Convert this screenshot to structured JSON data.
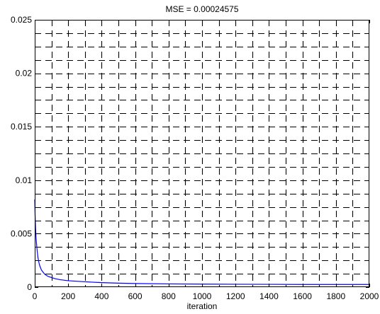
{
  "chart_data": {
    "type": "line",
    "title": "MSE =  0.00024575",
    "xlabel": "iteration",
    "ylabel": "",
    "xlim": [
      0,
      2000
    ],
    "ylim": [
      0,
      0.025
    ],
    "grid": true,
    "x_ticks": [
      0,
      200,
      400,
      600,
      800,
      1000,
      1200,
      1400,
      1600,
      1800,
      2000
    ],
    "x_tick_labels": [
      "0",
      "200",
      "400",
      "600",
      "800",
      "1000",
      "1200",
      "1400",
      "1600",
      "1800",
      "2000"
    ],
    "y_ticks": [
      0,
      0.005,
      0.01,
      0.015,
      0.02,
      0.025
    ],
    "y_tick_labels": [
      "0",
      "0.005",
      "0.01",
      "0.015",
      "0.02",
      "0.025"
    ],
    "series": [
      {
        "color": "#0000ff",
        "x": [
          0,
          2,
          5,
          8,
          12,
          16,
          20,
          25,
          30,
          35,
          40,
          50,
          60,
          70,
          80,
          100,
          120,
          150,
          200,
          250,
          300,
          400,
          500,
          600,
          800,
          1000,
          1200,
          1400,
          1600,
          1800,
          2000
        ],
        "y": [
          0.0082,
          0.0068,
          0.0055,
          0.0046,
          0.0038,
          0.0032,
          0.0027,
          0.0023,
          0.002,
          0.0018,
          0.0016,
          0.0014,
          0.0012,
          0.0011,
          0.001,
          0.0009,
          0.0008,
          0.0007,
          0.0006,
          0.00055,
          0.0005,
          0.00042,
          0.00037,
          0.00034,
          0.0003,
          0.00028,
          0.00027,
          0.00026,
          0.00025,
          0.000248,
          0.00024575
        ]
      }
    ]
  }
}
